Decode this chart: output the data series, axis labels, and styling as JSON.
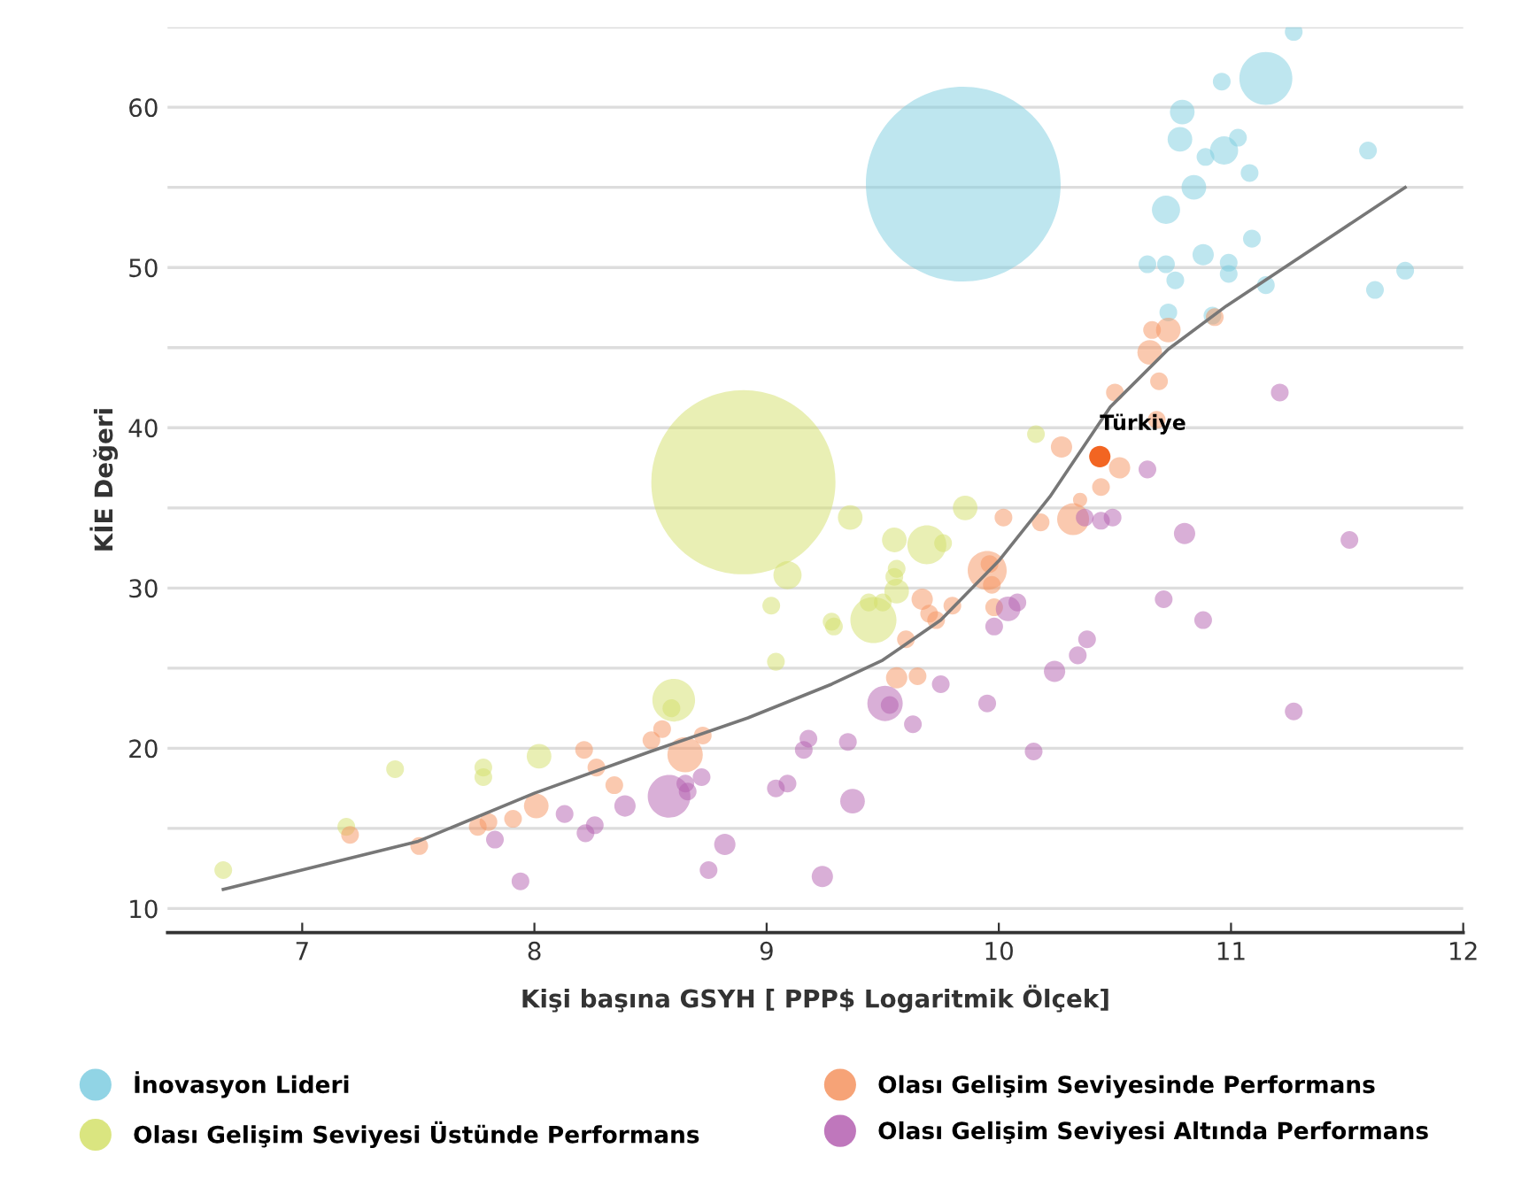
{
  "chart_data": {
    "type": "bubble",
    "xlabel": "Kişi başına GSYH [ PPP$ Logaritmik Ölçek]",
    "ylabel": "KİE Değeri",
    "xlim": [
      6.42,
      12
    ],
    "xticks": [
      7,
      8,
      9,
      10,
      11,
      12
    ],
    "ylim": [
      8.5,
      65
    ],
    "yticks": [
      10,
      {
        "value": 15,
        "label": null
      },
      20,
      {
        "value": 25,
        "label": null
      },
      30,
      {
        "value": 35,
        "label": null
      },
      40,
      {
        "value": 45,
        "label": null
      },
      50,
      {
        "value": 55,
        "label": null
      },
      60,
      {
        "value": 65,
        "label": null
      }
    ],
    "grid": "y",
    "legend": "bottom",
    "marker": "circle",
    "annotations": [
      {
        "text": "Türkiye",
        "x": 10.435,
        "y": 38.2
      }
    ],
    "series": [
      {
        "name": "İnovasyon Lideri",
        "color": "#7ecde0",
        "x": [
          9.847,
          11.27,
          11.15,
          10.96,
          10.79,
          10.78,
          11.03,
          10.97,
          10.89,
          11.08,
          11.59,
          10.84,
          10.72,
          11.09,
          10.64,
          10.72,
          10.88,
          10.99,
          10.99,
          10.76,
          11.15,
          11.75,
          11.62,
          10.73,
          10.92
        ],
        "values": [
          55.2,
          64.7,
          61.8,
          61.6,
          59.7,
          58.0,
          58.1,
          57.3,
          56.9,
          55.9,
          57.3,
          55.0,
          53.6,
          51.8,
          50.2,
          50.2,
          50.8,
          50.3,
          49.6,
          49.2,
          48.9,
          49.8,
          48.6,
          47.2,
          47.0
        ],
        "sizes": [
          1,
          0.0083,
          0.074,
          0.0083,
          0.016,
          0.016,
          0.0083,
          0.021,
          0.0083,
          0.0083,
          0.0083,
          0.016,
          0.021,
          0.0083,
          0.0083,
          0.0083,
          0.012,
          0.0083,
          0.0083,
          0.0083,
          0.0083,
          0.0083,
          0.0083,
          0.0083,
          0.0083
        ]
      },
      {
        "name": "Olası Gelişim Seviyesi Üstünde Performans",
        "color": "#d4e06a",
        "x": [
          8.9,
          10.16,
          9.855,
          9.36,
          9.76,
          9.69,
          9.55,
          9.09,
          9.56,
          9.55,
          9.56,
          9.5,
          9.28,
          9.29,
          9.02,
          9.46,
          9.44,
          9.04,
          8.6,
          8.59,
          8.02,
          7.78,
          7.78,
          7.4,
          7.19,
          6.66
        ],
        "values": [
          36.6,
          39.6,
          35.0,
          34.4,
          32.8,
          32.7,
          33.0,
          30.8,
          31.2,
          30.7,
          29.8,
          29.1,
          27.9,
          27.6,
          28.9,
          28.0,
          29.1,
          25.4,
          23.0,
          22.5,
          19.5,
          18.8,
          18.2,
          18.7,
          15.1,
          12.4
        ],
        "sizes": [
          0.894,
          0.0083,
          0.016,
          0.016,
          0.0083,
          0.04,
          0.016,
          0.021,
          0.0083,
          0.0083,
          0.016,
          0.0083,
          0.0083,
          0.0083,
          0.0083,
          0.056,
          0.0083,
          0.0083,
          0.048,
          0.0083,
          0.016,
          0.0083,
          0.0083,
          0.0083,
          0.0083,
          0.0083
        ]
      },
      {
        "name": "Olası Gelişim Seviyesinde Performans",
        "color": "#f5935f",
        "x": [
          10.93,
          10.66,
          10.73,
          10.65,
          10.5,
          10.69,
          10.68,
          10.27,
          10.52,
          10.44,
          10.35,
          10.32,
          10.02,
          10.18,
          9.96,
          9.95,
          9.97,
          9.98,
          9.67,
          9.7,
          9.73,
          9.8,
          9.6,
          9.56,
          9.65,
          8.504,
          8.55,
          8.649,
          8.725,
          8.214,
          8.267,
          8.344,
          8.008,
          7.908,
          7.802,
          7.756,
          7.504,
          7.206
        ],
        "values": [
          46.9,
          46.1,
          46.1,
          44.7,
          42.2,
          42.9,
          40.5,
          38.8,
          37.5,
          36.3,
          35.5,
          34.3,
          34.4,
          34.1,
          31.5,
          31.1,
          30.2,
          28.8,
          29.3,
          28.4,
          28.0,
          28.9,
          26.8,
          24.4,
          24.5,
          20.5,
          21.2,
          19.6,
          20.8,
          19.9,
          18.8,
          17.7,
          16.4,
          15.6,
          15.4,
          15.1,
          13.9,
          14.6
        ],
        "sizes": [
          0.0083,
          0.0083,
          0.016,
          0.016,
          0.0083,
          0.0083,
          0.0083,
          0.012,
          0.012,
          0.0083,
          0.0053,
          0.027,
          0.0083,
          0.0083,
          0.0083,
          0.04,
          0.0083,
          0.0083,
          0.012,
          0.0083,
          0.0083,
          0.0083,
          0.0083,
          0.012,
          0.0083,
          0.0083,
          0.0083,
          0.033,
          0.0083,
          0.0083,
          0.0083,
          0.0083,
          0.016,
          0.0083,
          0.0083,
          0.0083,
          0.0083,
          0.0083
        ]
      },
      {
        "name": "Olası Gelişim Seviyesi Altında Performans",
        "color": "#b45fb0",
        "x": [
          11.21,
          10.64,
          10.8,
          11.51,
          10.37,
          10.44,
          10.49,
          10.71,
          10.88,
          10.08,
          10.04,
          9.98,
          10.38,
          10.34,
          10.24,
          11.27,
          10.15,
          9.95,
          9.75,
          9.51,
          9.53,
          9.63,
          9.35,
          9.37,
          9.24,
          9.18,
          9.16,
          9.04,
          9.09,
          8.58,
          8.65,
          8.66,
          8.72,
          8.39,
          8.13,
          8.26,
          8.22,
          7.83,
          8.82,
          8.75,
          7.94
        ],
        "values": [
          42.2,
          37.4,
          33.4,
          33.0,
          34.4,
          34.2,
          34.4,
          29.3,
          28.0,
          29.1,
          28.7,
          27.6,
          26.8,
          25.8,
          24.8,
          22.3,
          19.8,
          22.8,
          24.0,
          22.8,
          22.7,
          21.5,
          20.4,
          16.7,
          12.0,
          20.6,
          19.9,
          17.5,
          17.8,
          17.0,
          17.8,
          17.3,
          18.2,
          16.4,
          15.9,
          15.2,
          14.7,
          14.3,
          14.0,
          12.4,
          11.7
        ],
        "sizes": [
          0.0083,
          0.0083,
          0.012,
          0.0083,
          0.0083,
          0.0083,
          0.0083,
          0.0083,
          0.0083,
          0.0083,
          0.016,
          0.0083,
          0.0083,
          0.0083,
          0.012,
          0.0083,
          0.0083,
          0.0083,
          0.0083,
          0.033,
          0.0083,
          0.0083,
          0.0083,
          0.016,
          0.012,
          0.0083,
          0.0083,
          0.0083,
          0.0083,
          0.048,
          0.0083,
          0.0083,
          0.0083,
          0.012,
          0.0083,
          0.0083,
          0.0083,
          0.0083,
          0.012,
          0.0083,
          0.0083
        ]
      },
      {
        "color": "#f26522",
        "x": [
          10.435
        ],
        "values": [
          38.2
        ],
        "sizes": [
          0.012
        ]
      },
      {
        "type": "line",
        "marker": "none",
        "color": "#777777",
        "x": [
          6.66,
          7.5,
          8.0,
          8.5,
          8.92,
          9.28,
          9.5,
          9.75,
          10.0,
          10.22,
          10.48,
          10.73,
          10.98,
          11.24,
          11.75
        ],
        "values": [
          11.2,
          14.2,
          17.2,
          19.8,
          21.9,
          24.0,
          25.5,
          28.0,
          31.7,
          35.7,
          41.3,
          44.9,
          47.6,
          50.1,
          55.0
        ]
      }
    ]
  }
}
